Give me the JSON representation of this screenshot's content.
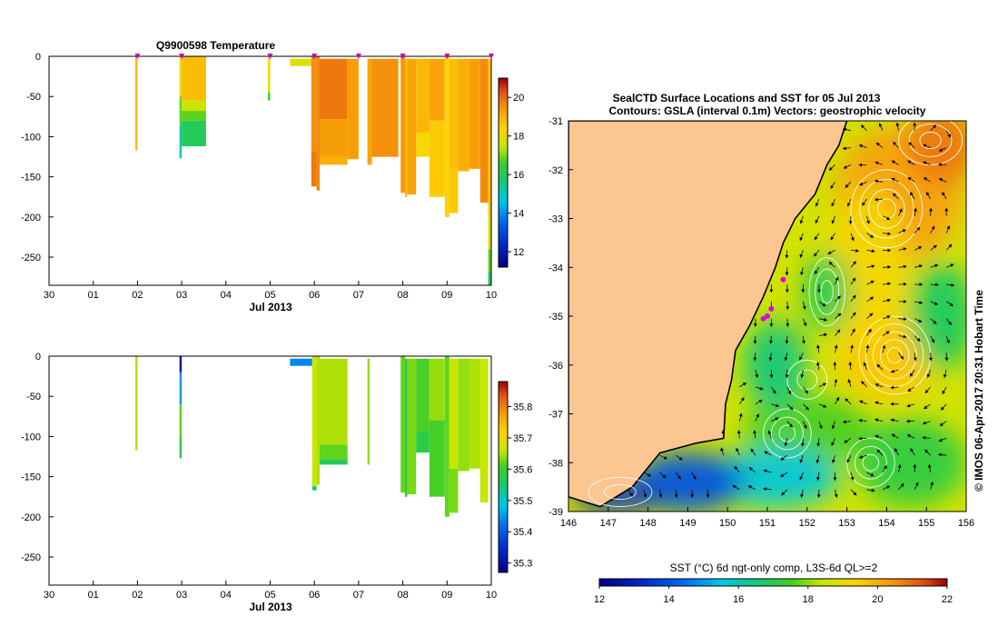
{
  "chart_data": [
    {
      "type": "heatmap",
      "panel": "temperature-section",
      "title": "Q9900598  Temperature",
      "xlabel": "Jul 2013",
      "ylabel": "",
      "x_ticks": [
        "30",
        "01",
        "02",
        "03",
        "04",
        "05",
        "06",
        "07",
        "08",
        "09",
        "10"
      ],
      "x_range_days": [
        0,
        10
      ],
      "y_ticks": [
        0,
        -50,
        -100,
        -150,
        -200,
        -250
      ],
      "ylim": [
        -285,
        0
      ],
      "colorbar": {
        "min": 11.2,
        "max": 21.0,
        "ticks": [
          12,
          14,
          16,
          18,
          20
        ]
      },
      "profile_markers_days": [
        2,
        3,
        5,
        6,
        7,
        8,
        9,
        10
      ],
      "profiles": [
        {
          "x0": 1.95,
          "x1": 2.0,
          "segs": [
            [
              0,
              -117,
              18.8
            ]
          ]
        },
        {
          "x0": 2.95,
          "x1": 3.0,
          "segs": [
            [
              0,
              -50,
              18.0
            ],
            [
              -50,
              -85,
              16.8
            ],
            [
              -85,
              -127,
              15.2
            ]
          ]
        },
        {
          "x0": 3.0,
          "x1": 3.55,
          "segs": [
            [
              0,
              -55,
              18.8
            ],
            [
              -55,
              -68,
              17.5
            ],
            [
              -68,
              -80,
              16.8
            ],
            [
              -80,
              -112,
              16.0
            ]
          ]
        },
        {
          "x0": 4.95,
          "x1": 5.0,
          "segs": [
            [
              0,
              -30,
              18.3
            ],
            [
              -30,
              -45,
              17.5
            ],
            [
              -45,
              -55,
              16.5
            ]
          ]
        },
        {
          "x0": 5.45,
          "x1": 5.95,
          "segs": [
            [
              -3,
              -12,
              17.9
            ]
          ]
        },
        {
          "x0": 5.93,
          "x1": 6.05,
          "segs": [
            [
              0,
              -118,
              19.5
            ],
            [
              -118,
              -162,
              19.8
            ]
          ]
        },
        {
          "x0": 6.05,
          "x1": 6.12,
          "segs": [
            [
              0,
              -167,
              19.6
            ]
          ]
        },
        {
          "x0": 6.12,
          "x1": 6.75,
          "segs": [
            [
              -3,
              -78,
              19.8
            ],
            [
              -78,
              -125,
              19.3
            ],
            [
              -125,
              -135,
              19.0
            ]
          ]
        },
        {
          "x0": 6.75,
          "x1": 7.0,
          "segs": [
            [
              -3,
              -128,
              19.3
            ]
          ]
        },
        {
          "x0": 7.2,
          "x1": 7.3,
          "segs": [
            [
              -3,
              -135,
              19.2
            ]
          ]
        },
        {
          "x0": 7.3,
          "x1": 7.9,
          "segs": [
            [
              -3,
              -125,
              19.5
            ]
          ]
        },
        {
          "x0": 7.95,
          "x1": 8.05,
          "segs": [
            [
              0,
              -170,
              19.4
            ]
          ]
        },
        {
          "x0": 8.05,
          "x1": 8.1,
          "segs": [
            [
              -3,
              -175,
              18.8
            ]
          ]
        },
        {
          "x0": 8.1,
          "x1": 8.3,
          "segs": [
            [
              -3,
              -172,
              19.2
            ]
          ]
        },
        {
          "x0": 8.3,
          "x1": 8.6,
          "segs": [
            [
              -3,
              -95,
              18.9
            ],
            [
              -95,
              -125,
              18.3
            ]
          ]
        },
        {
          "x0": 8.6,
          "x1": 8.95,
          "segs": [
            [
              -3,
              -80,
              19.2
            ],
            [
              -80,
              -172,
              18.6
            ],
            [
              -172,
              -175,
              18.0
            ]
          ]
        },
        {
          "x0": 8.95,
          "x1": 9.05,
          "segs": [
            [
              0,
              -200,
              18.4
            ]
          ]
        },
        {
          "x0": 9.05,
          "x1": 9.25,
          "segs": [
            [
              -3,
              -140,
              18.8
            ],
            [
              -140,
              -195,
              18.6
            ]
          ]
        },
        {
          "x0": 9.25,
          "x1": 9.5,
          "segs": [
            [
              -3,
              -143,
              19.0
            ]
          ]
        },
        {
          "x0": 9.5,
          "x1": 9.75,
          "segs": [
            [
              -3,
              -140,
              19.3
            ]
          ]
        },
        {
          "x0": 9.75,
          "x1": 9.93,
          "segs": [
            [
              -3,
              -182,
              19.6
            ]
          ]
        },
        {
          "x0": 9.93,
          "x1": 10.0,
          "segs": [
            [
              -3,
              -200,
              18.6
            ],
            [
              -200,
              -240,
              17.8
            ],
            [
              -240,
              -268,
              16.8
            ],
            [
              -268,
              -285,
              15.8
            ]
          ]
        }
      ]
    },
    {
      "type": "heatmap",
      "panel": "salinity-section",
      "title": "",
      "xlabel": "Jul 2013",
      "ylabel": "",
      "x_ticks": [
        "30",
        "01",
        "02",
        "03",
        "04",
        "05",
        "06",
        "07",
        "08",
        "09",
        "10"
      ],
      "x_range_days": [
        0,
        10
      ],
      "y_ticks": [
        0,
        -50,
        -100,
        -150,
        -200,
        -250
      ],
      "ylim": [
        -285,
        0
      ],
      "colorbar": {
        "min": 35.27,
        "max": 35.88,
        "ticks": [
          35.3,
          35.4,
          35.5,
          35.6,
          35.7,
          35.8
        ]
      },
      "profiles": [
        {
          "x0": 1.95,
          "x1": 2.0,
          "segs": [
            [
              0,
              -117,
              35.65
            ]
          ]
        },
        {
          "x0": 2.95,
          "x1": 3.0,
          "segs": [
            [
              0,
              -20,
              35.3
            ],
            [
              -20,
              -60,
              35.45
            ],
            [
              -60,
              -100,
              35.62
            ],
            [
              -100,
              -127,
              35.58
            ]
          ]
        },
        {
          "x0": 5.45,
          "x1": 5.95,
          "segs": [
            [
              -3,
              -12,
              35.44
            ]
          ]
        },
        {
          "x0": 5.95,
          "x1": 6.05,
          "segs": [
            [
              0,
              -162,
              35.66
            ],
            [
              -162,
              -167,
              35.55
            ]
          ]
        },
        {
          "x0": 6.05,
          "x1": 6.12,
          "segs": [
            [
              0,
              -160,
              35.65
            ]
          ]
        },
        {
          "x0": 6.12,
          "x1": 6.75,
          "segs": [
            [
              -3,
              -110,
              35.65
            ],
            [
              -110,
              -128,
              35.62
            ],
            [
              -128,
              -135,
              35.57
            ]
          ]
        },
        {
          "x0": 7.2,
          "x1": 7.25,
          "segs": [
            [
              -3,
              -135,
              35.64
            ]
          ]
        },
        {
          "x0": 7.95,
          "x1": 8.05,
          "segs": [
            [
              0,
              -170,
              35.62
            ]
          ]
        },
        {
          "x0": 8.05,
          "x1": 8.1,
          "segs": [
            [
              -3,
              -175,
              35.57
            ]
          ]
        },
        {
          "x0": 8.1,
          "x1": 8.3,
          "segs": [
            [
              -3,
              -172,
              35.63
            ]
          ]
        },
        {
          "x0": 8.3,
          "x1": 8.6,
          "segs": [
            [
              -3,
              -95,
              35.61
            ],
            [
              -95,
              -120,
              35.58
            ]
          ]
        },
        {
          "x0": 8.6,
          "x1": 8.95,
          "segs": [
            [
              -3,
              -80,
              35.64
            ],
            [
              -80,
              -175,
              35.61
            ]
          ]
        },
        {
          "x0": 8.95,
          "x1": 9.05,
          "segs": [
            [
              0,
              -200,
              35.62
            ]
          ]
        },
        {
          "x0": 9.05,
          "x1": 9.25,
          "segs": [
            [
              -3,
              -140,
              35.66
            ],
            [
              -140,
              -195,
              35.63
            ]
          ]
        },
        {
          "x0": 9.25,
          "x1": 9.5,
          "segs": [
            [
              -3,
              -143,
              35.64
            ]
          ]
        },
        {
          "x0": 9.5,
          "x1": 9.75,
          "segs": [
            [
              -3,
              -140,
              35.65
            ]
          ]
        },
        {
          "x0": 9.75,
          "x1": 9.93,
          "segs": [
            [
              -3,
              -182,
              35.66
            ]
          ]
        }
      ]
    },
    {
      "type": "map",
      "panel": "sst-map",
      "title": "SealCTD Surface Locations and SST for 05 Jul 2013",
      "subtitle": "Contours: GSLA (interval 0.1m) Vectors: geostrophic velocity",
      "xlim": [
        146,
        156
      ],
      "ylim": [
        -39,
        -31
      ],
      "x_ticks": [
        146,
        147,
        148,
        149,
        150,
        151,
        152,
        153,
        154,
        155,
        156
      ],
      "y_ticks": [
        -31,
        -32,
        -33,
        -34,
        -35,
        -36,
        -37,
        -38,
        -39
      ],
      "side_label": "© IMOS 06-Apr-2017 20:31 Hobart Time",
      "colorbar": {
        "label": "SST (°C) 6d ngt-only comp, L3S-6d QL>=2",
        "min": 12,
        "max": 22,
        "ticks": [
          12,
          14,
          16,
          18,
          20,
          22
        ]
      },
      "coastline": [
        [
          146,
          -38.7
        ],
        [
          146.8,
          -38.9
        ],
        [
          147.6,
          -38.5
        ],
        [
          148.3,
          -37.8
        ],
        [
          149.2,
          -37.6
        ],
        [
          149.9,
          -37.5
        ],
        [
          149.95,
          -36.8
        ],
        [
          150.1,
          -36.3
        ],
        [
          150.2,
          -35.7
        ],
        [
          150.55,
          -35.2
        ],
        [
          150.9,
          -34.6
        ],
        [
          151.2,
          -34.0
        ],
        [
          151.4,
          -33.5
        ],
        [
          151.7,
          -33.0
        ],
        [
          152.2,
          -32.5
        ],
        [
          152.5,
          -31.9
        ],
        [
          152.8,
          -31.5
        ],
        [
          153.0,
          -31.0
        ]
      ],
      "sst_blobs": [
        {
          "lon": 154.3,
          "lat": -32.5,
          "r_lon": 1.6,
          "r_lat": 1.4,
          "sst": 20.2
        },
        {
          "lon": 155.4,
          "lat": -31.5,
          "r_lon": 0.9,
          "r_lat": 0.8,
          "sst": 20.8
        },
        {
          "lon": 154.0,
          "lat": -35.8,
          "r_lon": 1.2,
          "r_lat": 0.9,
          "sst": 19.6
        },
        {
          "lon": 153.5,
          "lat": -34.0,
          "r_lon": 1.0,
          "r_lat": 1.6,
          "sst": 19.2
        },
        {
          "lon": 152.5,
          "lat": -34.5,
          "r_lon": 0.6,
          "r_lat": 0.8,
          "sst": 17.0
        },
        {
          "lon": 155.4,
          "lat": -35.0,
          "r_lon": 0.8,
          "r_lat": 1.1,
          "sst": 16.8
        },
        {
          "lon": 152.0,
          "lat": -37.3,
          "r_lon": 1.6,
          "r_lat": 0.7,
          "sst": 17.6
        },
        {
          "lon": 151.2,
          "lat": -36.0,
          "r_lon": 0.8,
          "r_lat": 0.9,
          "sst": 16.5
        },
        {
          "lon": 154.6,
          "lat": -38.0,
          "r_lon": 1.4,
          "r_lat": 0.9,
          "sst": 17.2
        },
        {
          "lon": 151.2,
          "lat": -38.3,
          "r_lon": 1.6,
          "r_lat": 0.6,
          "sst": 15.6
        },
        {
          "lon": 149.0,
          "lat": -38.4,
          "r_lon": 1.4,
          "r_lat": 0.6,
          "sst": 14.0
        },
        {
          "lon": 147.2,
          "lat": -38.7,
          "r_lon": 1.1,
          "r_lat": 0.3,
          "sst": 13.3
        }
      ],
      "gsla_eddies": [
        {
          "lon": 154.0,
          "lat": -32.8,
          "r_lon": 0.9,
          "r_lat": 0.8,
          "rings": 4
        },
        {
          "lon": 154.2,
          "lat": -35.8,
          "r_lon": 0.9,
          "r_lat": 0.8,
          "rings": 5
        },
        {
          "lon": 152.5,
          "lat": -34.5,
          "r_lon": 0.45,
          "r_lat": 0.7,
          "rings": 3
        },
        {
          "lon": 155.1,
          "lat": -31.4,
          "r_lon": 0.8,
          "r_lat": 0.5,
          "rings": 3
        },
        {
          "lon": 153.6,
          "lat": -38.0,
          "r_lon": 0.6,
          "r_lat": 0.5,
          "rings": 3
        },
        {
          "lon": 151.5,
          "lat": -37.4,
          "r_lon": 0.6,
          "r_lat": 0.5,
          "rings": 3
        },
        {
          "lon": 152.0,
          "lat": -36.3,
          "r_lon": 0.5,
          "r_lat": 0.4,
          "rings": 2
        },
        {
          "lon": 147.3,
          "lat": -38.6,
          "r_lon": 0.8,
          "r_lat": 0.3,
          "rings": 2
        }
      ],
      "seal_locations": [
        [
          151.4,
          -34.25
        ],
        [
          151.0,
          -35.0
        ],
        [
          150.9,
          -35.05
        ],
        [
          151.1,
          -34.85
        ]
      ]
    }
  ]
}
